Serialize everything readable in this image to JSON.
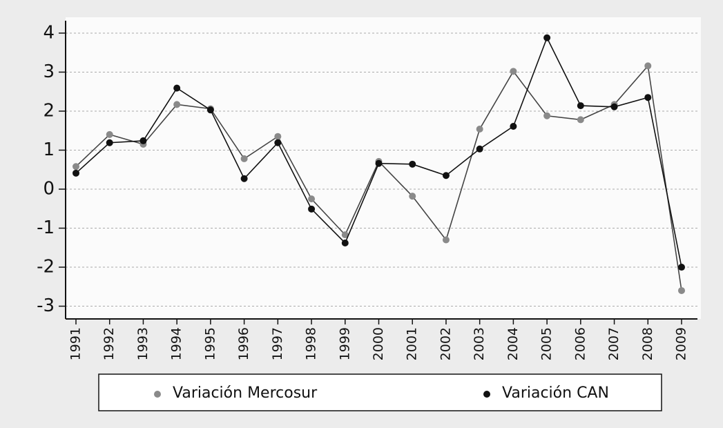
{
  "chart_data": {
    "type": "line",
    "categories": [
      "1991",
      "1992",
      "1993",
      "1994",
      "1995",
      "1996",
      "1997",
      "1998",
      "1999",
      "2000",
      "2001",
      "2002",
      "2003",
      "2004",
      "2005",
      "2006",
      "2007",
      "2008",
      "2009"
    ],
    "series": [
      {
        "name": "Variación Mercosur",
        "color": "#8a8a8a",
        "values": [
          0.58,
          1.4,
          1.15,
          2.17,
          2.06,
          0.78,
          1.35,
          -0.25,
          -1.17,
          0.71,
          -0.18,
          -1.3,
          1.54,
          3.02,
          1.88,
          1.78,
          2.17,
          3.16,
          -2.6
        ]
      },
      {
        "name": "Variación CAN",
        "color": "#111111",
        "values": [
          0.41,
          1.19,
          1.24,
          2.59,
          2.03,
          0.27,
          1.19,
          -0.51,
          -1.38,
          0.66,
          0.64,
          0.35,
          1.03,
          1.61,
          3.88,
          2.14,
          2.11,
          2.35,
          -2.0
        ]
      }
    ],
    "ylim": [
      -3.3,
      4.3
    ],
    "yticks": [
      4,
      3,
      2,
      1,
      0,
      -1,
      -2,
      -3
    ],
    "grid": true,
    "legend": "bottom"
  }
}
